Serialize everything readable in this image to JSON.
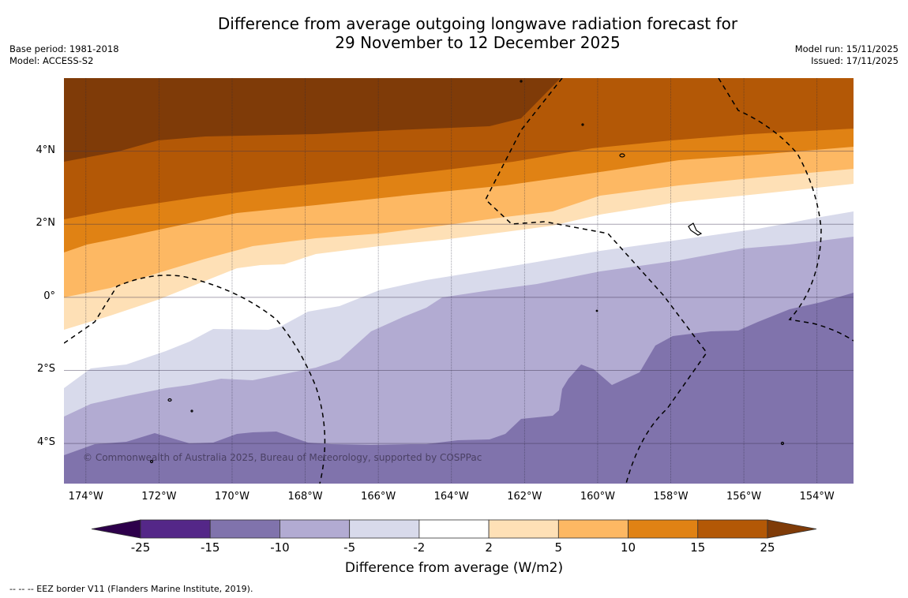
{
  "header": {
    "title_line1": "Difference from average outgoing longwave radiation forecast for",
    "title_line2": "29 November to 12 December 2025",
    "base_period": "Base period: 1981-2018",
    "model": "Model: ACCESS-S2",
    "model_run": "Model run: 15/11/2025",
    "issued": "Issued: 17/11/2025"
  },
  "map": {
    "lat_labels": [
      "4°N",
      "2°N",
      "0°",
      "2°S",
      "4°S"
    ],
    "lon_labels": [
      "174°W",
      "172°W",
      "170°W",
      "168°W",
      "166°W",
      "164°W",
      "162°W",
      "160°W",
      "158°W",
      "156°W",
      "154°W"
    ],
    "extent": {
      "lon_min": -174.6,
      "lon_max": -153.0,
      "lat_min": -5.1,
      "lat_max": 6.0
    },
    "copyright": "© Commonwealth of Australia 2025, Bureau of Meteorology, supported by COSPPac"
  },
  "colorbar": {
    "ticks": [
      "-25",
      "-15",
      "-10",
      "-5",
      "-2",
      "2",
      "5",
      "10",
      "15",
      "25"
    ],
    "colors": [
      "#2d004b",
      "#542788",
      "#8073ac",
      "#b2abd2",
      "#d8daeb",
      "#ffffff",
      "#fee0b6",
      "#fdb863",
      "#e08214",
      "#b35806",
      "#7f3b08"
    ],
    "label": "Difference from average (W/m2)"
  },
  "footnote": "--  --  -- EEZ border V11 (Flanders Marine Institute, 2019)."
}
